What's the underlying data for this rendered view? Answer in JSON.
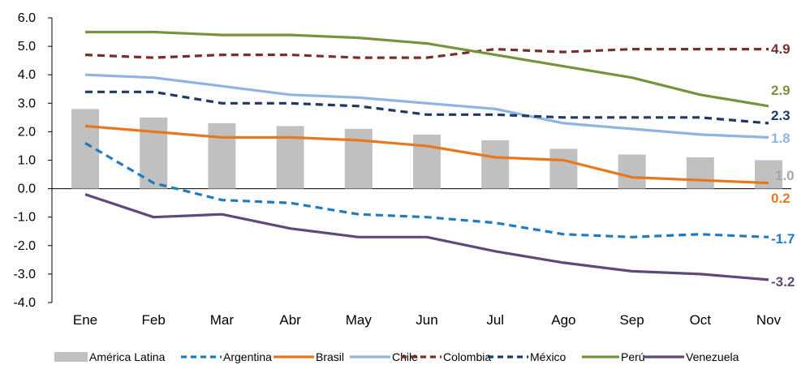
{
  "chart_data": {
    "type": "bar",
    "categories": [
      "Ene",
      "Feb",
      "Mar",
      "Abr",
      "May",
      "Jun",
      "Jul",
      "Ago",
      "Sep",
      "Oct",
      "Nov"
    ],
    "ylim": [
      -4.0,
      6.0
    ],
    "yticks": [
      "6.0",
      "5.0",
      "4.0",
      "3.0",
      "2.0",
      "1.0",
      "0.0",
      "-1.0",
      "-2.0",
      "-3.0",
      "-4.0"
    ],
    "bar_series": {
      "name": "América Latina",
      "color": "#c0c0c0",
      "values": [
        2.8,
        2.5,
        2.3,
        2.2,
        2.1,
        1.9,
        1.7,
        1.4,
        1.2,
        1.1,
        1.0
      ],
      "end_label": "1.0"
    },
    "line_series": [
      {
        "name": "Argentina",
        "color": "#1f7bc1",
        "dash": true,
        "values": [
          1.6,
          0.2,
          -0.4,
          -0.5,
          -0.9,
          -1.0,
          -1.2,
          -1.6,
          -1.7,
          -1.6,
          -1.7
        ],
        "end_label": "-1.7"
      },
      {
        "name": "Brasil",
        "color": "#e8781e",
        "dash": false,
        "values": [
          2.2,
          2.0,
          1.8,
          1.8,
          1.7,
          1.5,
          1.1,
          1.0,
          0.4,
          0.3,
          0.2
        ],
        "end_label": "0.2"
      },
      {
        "name": "Chile",
        "color": "#8db4e2",
        "dash": false,
        "values": [
          4.0,
          3.9,
          3.6,
          3.3,
          3.2,
          3.0,
          2.8,
          2.3,
          2.1,
          1.9,
          1.8
        ],
        "end_label": "1.8"
      },
      {
        "name": "Colombia",
        "color": "#7b2c2c",
        "dash": true,
        "values": [
          4.7,
          4.6,
          4.7,
          4.7,
          4.6,
          4.6,
          4.9,
          4.8,
          4.9,
          4.9,
          4.9
        ],
        "end_label": "4.9"
      },
      {
        "name": "México",
        "color": "#1f3864",
        "dash": true,
        "values": [
          3.4,
          3.4,
          3.0,
          3.0,
          2.9,
          2.6,
          2.6,
          2.5,
          2.5,
          2.5,
          2.3
        ],
        "end_label": "2.3"
      },
      {
        "name": "Perú",
        "color": "#77933c",
        "dash": false,
        "values": [
          5.5,
          5.5,
          5.4,
          5.4,
          5.3,
          5.1,
          4.7,
          4.3,
          3.9,
          3.3,
          2.9
        ],
        "end_label": "2.9"
      },
      {
        "name": "Venezuela",
        "color": "#5f497a",
        "dash": false,
        "values": [
          -0.2,
          -1.0,
          -0.9,
          -1.4,
          -1.7,
          -1.7,
          -2.2,
          -2.6,
          -2.9,
          -3.0,
          -3.2
        ],
        "end_label": "-3.2"
      }
    ],
    "legend_position": "bottom",
    "grid": false
  }
}
